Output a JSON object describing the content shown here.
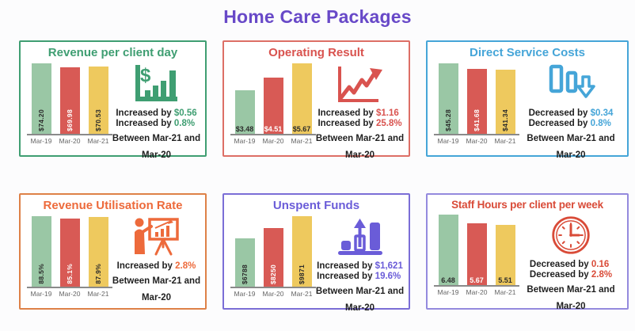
{
  "page_title": "Home Care Packages",
  "theme": {
    "title_color": "#6849c8",
    "background": "#fcfcfd",
    "bar_colors": [
      "#9ac7a5",
      "#d85a55",
      "#eec95e"
    ],
    "bar_label_colors": [
      "#2b2b2b",
      "#ffffff",
      "#2b2b2b"
    ],
    "axis_color": "#8a8a8a",
    "x_label_color": "#666666",
    "text_color": "#1f1f1f"
  },
  "chart_data": [
    {
      "id": "revenue-per-client-day",
      "type": "bar",
      "title": "Revenue per client day",
      "accent": "#3f9e72",
      "border_color": "#3f9e72",
      "icon": "dollar-growth-chart",
      "categories": [
        "Mar-19",
        "Mar-20",
        "Mar-21"
      ],
      "values": [
        74.2,
        69.98,
        70.53
      ],
      "bar_labels": [
        "$74.20",
        "$69.98",
        "$70.53"
      ],
      "label_orientation": "vertical",
      "stats": [
        {
          "prefix": "Increased by",
          "value": "$0.56"
        },
        {
          "prefix": "Increased by",
          "value": "0.8%"
        }
      ],
      "footnote_line1": "Between Mar-21 and",
      "footnote_line2": "Mar-20"
    },
    {
      "id": "operating-result",
      "type": "bar",
      "title": "Operating Result",
      "accent": "#d9534f",
      "border_color": "#dd6f66",
      "icon": "trend-up-arrow",
      "categories": [
        "Mar-19",
        "Mar-20",
        "Mar-21"
      ],
      "values": [
        3.48,
        4.51,
        5.67
      ],
      "bar_labels": [
        "$3.48",
        "$4.51",
        "$5.67"
      ],
      "label_orientation": "horizontal",
      "stats": [
        {
          "prefix": "Increased by",
          "value": "$1.16"
        },
        {
          "prefix": "Increased by",
          "value": "25.8%"
        }
      ],
      "footnote_line1": "Between Mar-21 and",
      "footnote_line2": "Mar-20"
    },
    {
      "id": "direct-service-costs",
      "type": "bar",
      "title": "Direct Service Costs",
      "accent": "#45a5d8",
      "border_color": "#45a5d8",
      "icon": "declining-bars-down-arrow",
      "categories": [
        "Mar-19",
        "Mar-20",
        "Mar-21"
      ],
      "values": [
        45.28,
        41.68,
        41.34
      ],
      "bar_labels": [
        "$45.28",
        "$41.68",
        "$41.34"
      ],
      "label_orientation": "vertical",
      "stats": [
        {
          "prefix": "Decreased by",
          "value": "$0.34"
        },
        {
          "prefix": "Decreased by",
          "value": "0.8%"
        }
      ],
      "footnote_line1": "Between Mar-21 and",
      "footnote_line2": "Mar-20"
    },
    {
      "id": "revenue-utilisation-rate",
      "type": "bar",
      "title": "Revenue Utilisation Rate",
      "accent": "#ed6a3b",
      "border_color": "#de8147",
      "icon": "presenter-board",
      "categories": [
        "Mar-19",
        "Mar-20",
        "Mar-21"
      ],
      "values": [
        88.5,
        85.1,
        87.9
      ],
      "bar_labels": [
        "88.5%",
        "85.1%",
        "87.9%"
      ],
      "label_orientation": "vertical",
      "stats": [
        {
          "prefix": "Increased by",
          "value": "2.8%"
        }
      ],
      "footnote_line1": "Between Mar-21 and",
      "footnote_line2": "Mar-20"
    },
    {
      "id": "unspent-funds",
      "type": "bar",
      "title": "Unspent Funds",
      "accent": "#6a5cd8",
      "border_color": "#7b6ed6",
      "icon": "bars-up-arrow",
      "categories": [
        "Mar-19",
        "Mar-20",
        "Mar-21"
      ],
      "values": [
        6788,
        8250,
        9871
      ],
      "bar_labels": [
        "$6788",
        "$8250",
        "$9871"
      ],
      "label_orientation": "vertical",
      "stats": [
        {
          "prefix": "Increased by",
          "value": "$1,621"
        },
        {
          "prefix": "Increased by",
          "value": "19.6%"
        }
      ],
      "footnote_line1": "Between Mar-21 and",
      "footnote_line2": "Mar-20"
    },
    {
      "id": "staff-hours-per-client-per-week",
      "type": "bar",
      "title": "Staff Hours per client per week",
      "accent": "#d94b38",
      "border_color": "#948ade",
      "icon": "clock",
      "categories": [
        "Mar-19",
        "Mar-20",
        "Mar-21"
      ],
      "values": [
        6.48,
        5.67,
        5.51
      ],
      "bar_labels": [
        "6.48",
        "5.67",
        "5.51"
      ],
      "label_orientation": "horizontal",
      "stats": [
        {
          "prefix": "Decreased by",
          "value": "0.16"
        },
        {
          "prefix": "Decreased by",
          "value": "2.8%"
        }
      ],
      "footnote_line1": "Between Mar-21 and",
      "footnote_line2": "Mar-20"
    }
  ]
}
